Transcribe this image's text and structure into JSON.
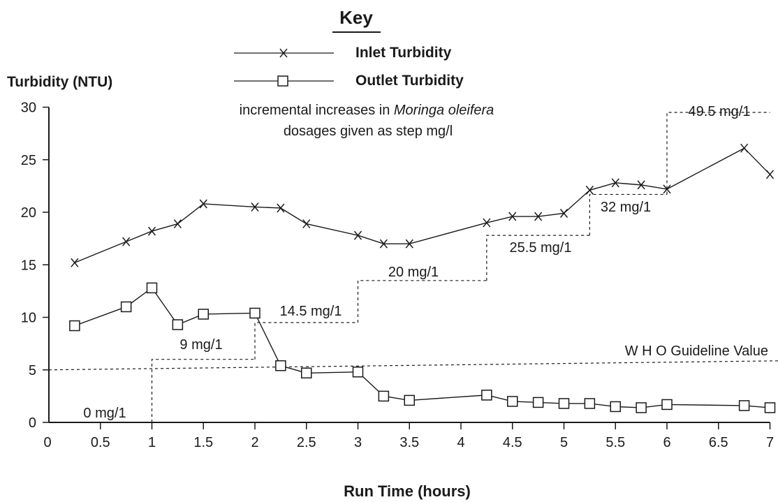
{
  "chart_data": {
    "type": "line",
    "key_title": "Key",
    "ylabel": "Turbidity (NTU)",
    "xlabel": "Run Time (hours)",
    "ylim": [
      0,
      30
    ],
    "xlim": [
      0,
      7
    ],
    "y_ticks": [
      "0",
      "5",
      "10",
      "15",
      "20",
      "25",
      "30"
    ],
    "x_ticks": [
      "0",
      "0.5",
      "1",
      "1.5",
      "2",
      "2.5",
      "3",
      "3.5",
      "4",
      "4.5",
      "5",
      "5.5",
      "6",
      "6.5",
      "7"
    ],
    "note_line1_prefix": "incremental increases in ",
    "note_line1_species": "Moringa oleifera",
    "note_line2": "dosages given as step mg/l",
    "series": [
      {
        "name": "Inlet Turbidity",
        "marker": "x",
        "x": [
          0.25,
          0.75,
          1.0,
          1.25,
          1.5,
          2.0,
          2.25,
          2.5,
          3.0,
          3.25,
          3.5,
          4.25,
          4.5,
          4.75,
          5.0,
          5.25,
          5.5,
          5.75,
          6.0,
          6.75,
          7.0
        ],
        "y": [
          15.2,
          17.2,
          18.2,
          18.9,
          20.8,
          20.5,
          20.4,
          18.9,
          17.8,
          17.0,
          17.0,
          19.0,
          19.6,
          19.6,
          19.9,
          22.1,
          22.8,
          22.6,
          22.2,
          26.1,
          23.6
        ]
      },
      {
        "name": "Outlet Turbidity",
        "marker": "square",
        "x": [
          0.25,
          0.75,
          1.0,
          1.25,
          1.5,
          2.0,
          2.25,
          2.5,
          3.0,
          3.25,
          3.5,
          4.25,
          4.5,
          4.75,
          5.0,
          5.25,
          5.5,
          5.75,
          6.0,
          6.75,
          7.0
        ],
        "y": [
          9.2,
          11.0,
          12.8,
          9.3,
          10.3,
          10.4,
          5.4,
          4.7,
          4.8,
          2.5,
          2.1,
          2.6,
          2.0,
          1.9,
          1.8,
          1.8,
          1.5,
          1.4,
          1.7,
          1.6,
          1.4
        ]
      }
    ],
    "who_guideline": {
      "label": "W H O Guideline Value",
      "y": 5
    },
    "dosage_steps": [
      {
        "label": "0 mg/1",
        "x_start": 0,
        "x_end": 1,
        "level": 0
      },
      {
        "label": "9 mg/1",
        "x_start": 1,
        "x_end": 2,
        "level": 6
      },
      {
        "label": "14.5 mg/1",
        "x_start": 2,
        "x_end": 3,
        "level": 9.5
      },
      {
        "label": "20 mg/1",
        "x_start": 3,
        "x_end": 4.25,
        "level": 13.5
      },
      {
        "label": "25.5 mg/1",
        "x_start": 4.25,
        "x_end": 5.25,
        "level": 17.8
      },
      {
        "label": "32 mg/1",
        "x_start": 5.25,
        "x_end": 6,
        "level": 21.7
      },
      {
        "label": "49.5 mg/1",
        "x_start": 6,
        "x_end": 7,
        "level": 29.5
      }
    ]
  }
}
